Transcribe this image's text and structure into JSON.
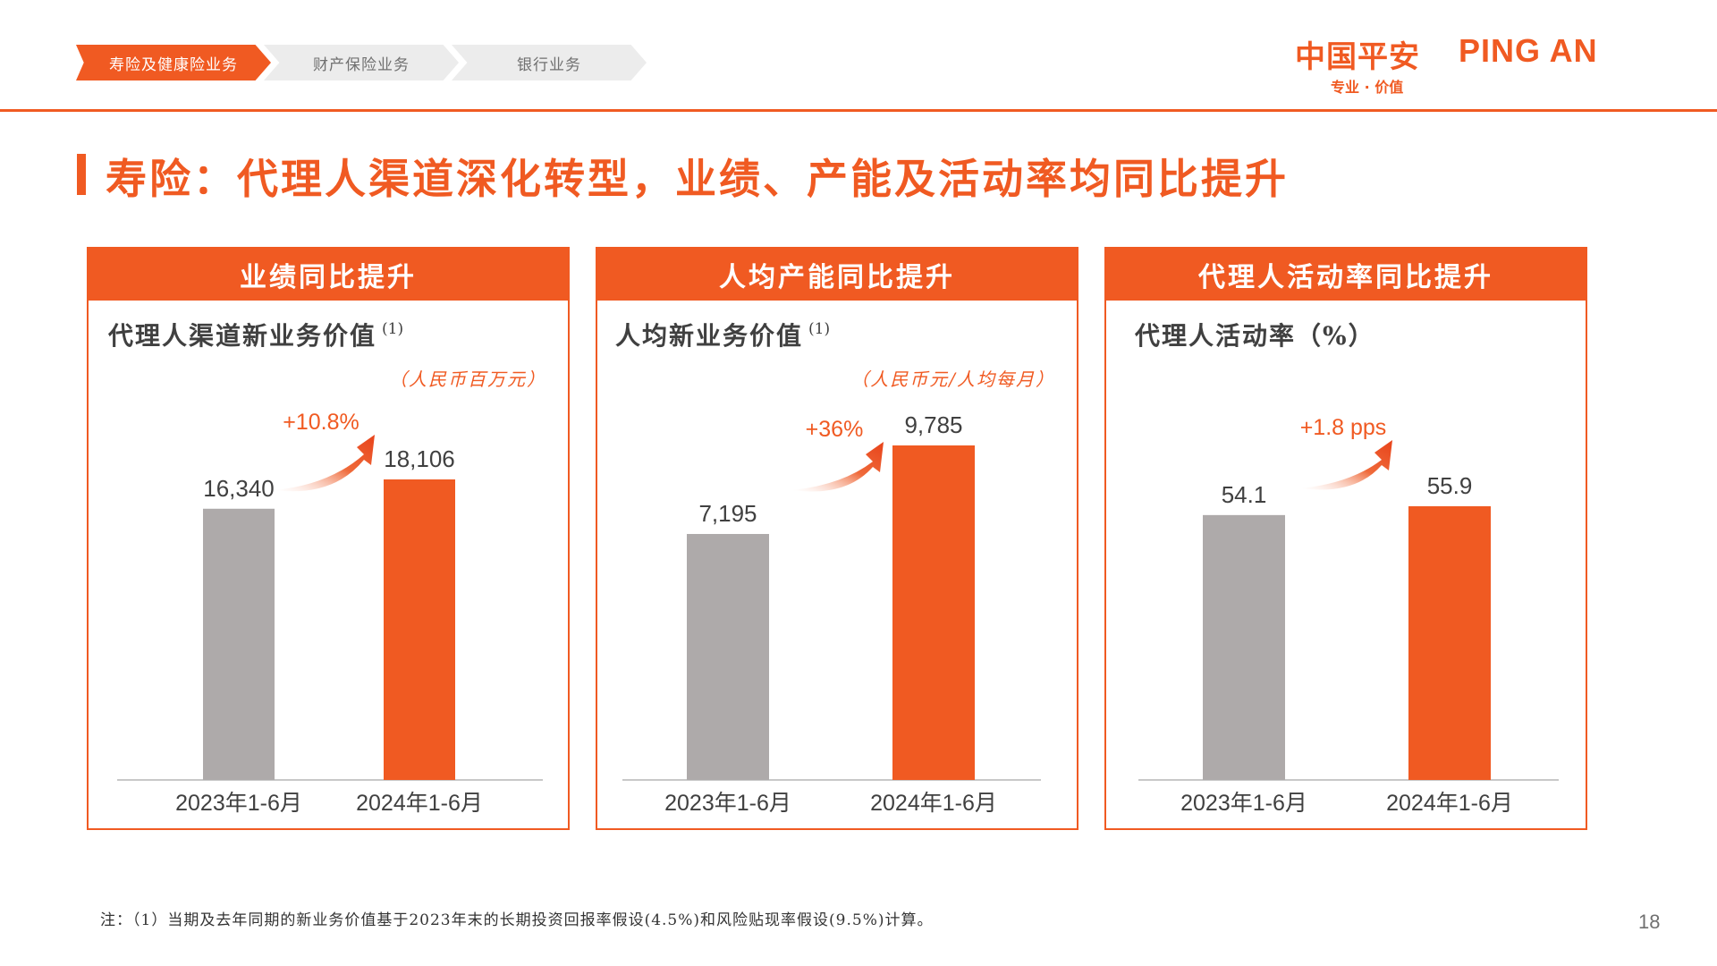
{
  "nav": {
    "tabs": [
      {
        "label": "寿险及健康险业务",
        "active": true
      },
      {
        "label": "财产保险业务",
        "active": false
      },
      {
        "label": "银行业务",
        "active": false
      }
    ]
  },
  "logo": {
    "cn": "中国平安",
    "en": "PING AN",
    "tagline": "专业 · 价值"
  },
  "title": "寿险：代理人渠道深化转型，业绩、产能及活动率均同比提升",
  "colors": {
    "accent": "#f05a22",
    "bar_prior": "#aeaaaa",
    "bar_current": "#f05a22"
  },
  "panels": [
    {
      "header": "业绩同比提升",
      "metric": "代理人渠道新业务价值",
      "metric_note": "(1)",
      "unit": "（人民币百万元）",
      "growth": "+10.8%"
    },
    {
      "header": "人均产能同比提升",
      "metric": "人均新业务价值",
      "metric_note": "(1)",
      "unit": "（人民币元/人均每月）",
      "growth": "+36%"
    },
    {
      "header": "代理人活动率同比提升",
      "metric": "代理人活动率（%）",
      "metric_note": "",
      "unit": "",
      "growth": "+1.8 pps"
    }
  ],
  "chart_data": [
    {
      "type": "bar",
      "title": "代理人渠道新业务价值",
      "categories": [
        "2023年1-6月",
        "2024年1-6月"
      ],
      "values": [
        16340,
        18106
      ],
      "value_labels": [
        "16,340",
        "18,106"
      ],
      "ylabel": "",
      "annotation": "+10.8%"
    },
    {
      "type": "bar",
      "title": "人均新业务价值",
      "categories": [
        "2023年1-6月",
        "2024年1-6月"
      ],
      "values": [
        7195,
        9785
      ],
      "value_labels": [
        "7,195",
        "9,785"
      ],
      "ylabel": "",
      "annotation": "+36%"
    },
    {
      "type": "bar",
      "title": "代理人活动率（%）",
      "categories": [
        "2023年1-6月",
        "2024年1-6月"
      ],
      "values": [
        54.1,
        55.9
      ],
      "value_labels": [
        "54.1",
        "55.9"
      ],
      "ylabel": "",
      "annotation": "+1.8 pps"
    }
  ],
  "footnote": "注：（1）当期及去年同期的新业务价值基于2023年末的长期投资回报率假设(4.5%)和风险贴现率假设(9.5%)计算。",
  "page_number": "18"
}
